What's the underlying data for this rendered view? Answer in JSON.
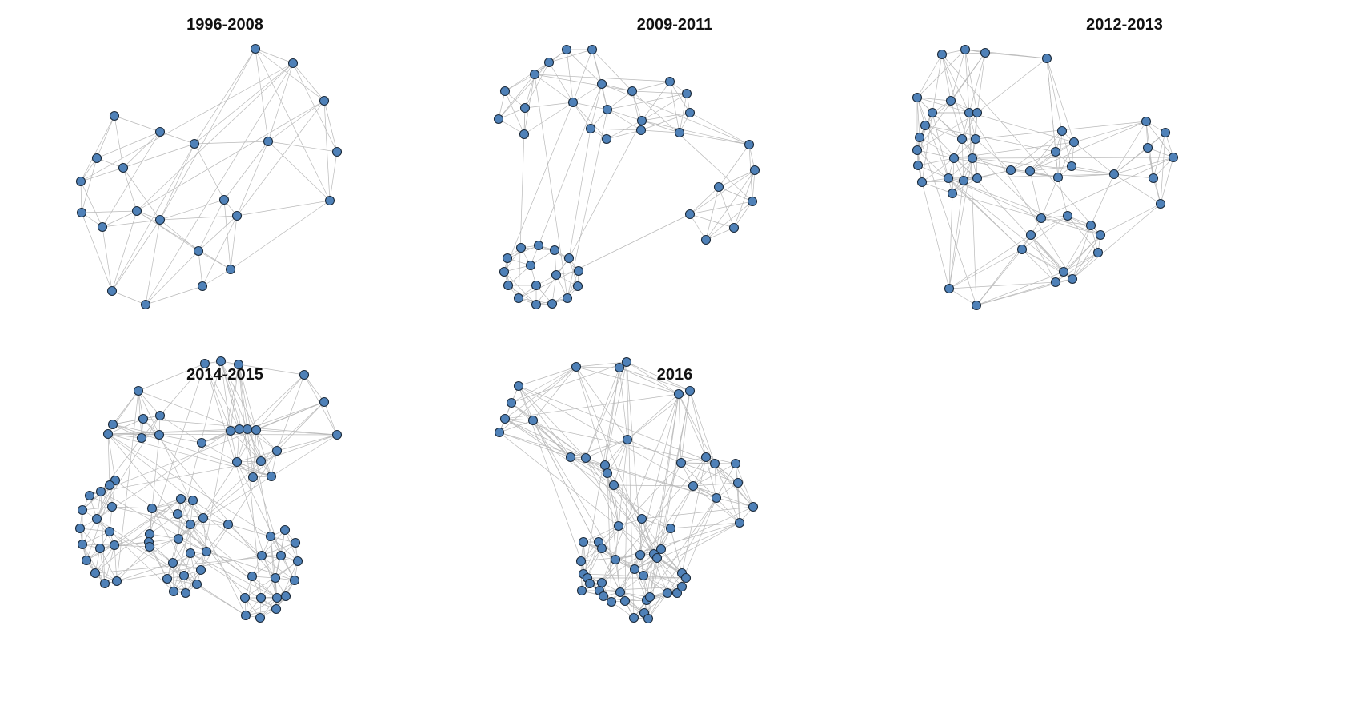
{
  "style": {
    "node_fill": "#4f81b8",
    "node_stroke": "#1b2a3a",
    "edge_color": "#b9b9b9"
  },
  "panels": [
    {
      "title": "1996-2008"
    },
    {
      "title": "2009-2011"
    },
    {
      "title": "2012-2013"
    },
    {
      "title": "2014-2015"
    },
    {
      "title": "2016"
    }
  ]
}
